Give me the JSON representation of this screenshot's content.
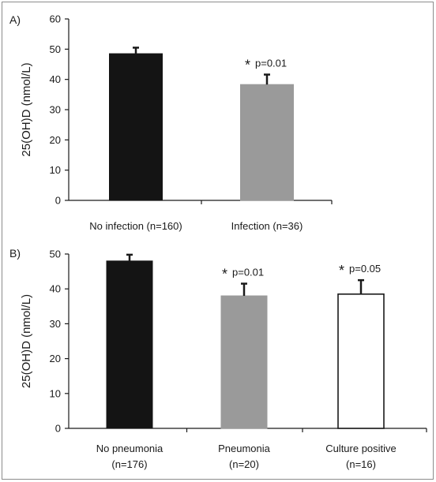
{
  "chart_data": [
    {
      "type": "bar",
      "panel_label": "A)",
      "categories": [
        "No infection (n=160)",
        "Infection (n=36)"
      ],
      "category_lines": [
        [
          "No infection (n=160)"
        ],
        [
          "Infection (n=36)"
        ]
      ],
      "values": [
        48.5,
        38.3
      ],
      "errors": [
        2.0,
        3.3
      ],
      "bar_colors": [
        "#141414",
        "#9a9a9a"
      ],
      "annotations": [
        null,
        {
          "star": "*",
          "text": "p=0.01"
        }
      ],
      "ylabel": "25(OH)D (nmol/L)",
      "yticks": [
        0,
        10,
        20,
        30,
        40,
        50,
        60
      ],
      "ylim": [
        0,
        60
      ],
      "grid": false
    },
    {
      "type": "bar",
      "panel_label": "B)",
      "categories": [
        "No pneumonia (n=176)",
        "Pneumonia (n=20)",
        "Culture positive (n=16)"
      ],
      "category_lines": [
        [
          "No pneumonia",
          "(n=176)"
        ],
        [
          "Pneumonia",
          "(n=20)"
        ],
        [
          "Culture positive",
          "(n=16)"
        ]
      ],
      "values": [
        48.0,
        38.0,
        38.5
      ],
      "errors": [
        1.8,
        3.5,
        4.0
      ],
      "bar_colors": [
        "#141414",
        "#9a9a9a",
        "#ffffff"
      ],
      "annotations": [
        null,
        {
          "star": "*",
          "text": "p=0.01"
        },
        {
          "star": "*",
          "text": "p=0.05"
        }
      ],
      "ylabel": "25(OH)D (nmol/L)",
      "yticks": [
        0,
        10,
        20,
        30,
        40,
        50
      ],
      "ylim": [
        0,
        50
      ],
      "grid": false
    }
  ]
}
